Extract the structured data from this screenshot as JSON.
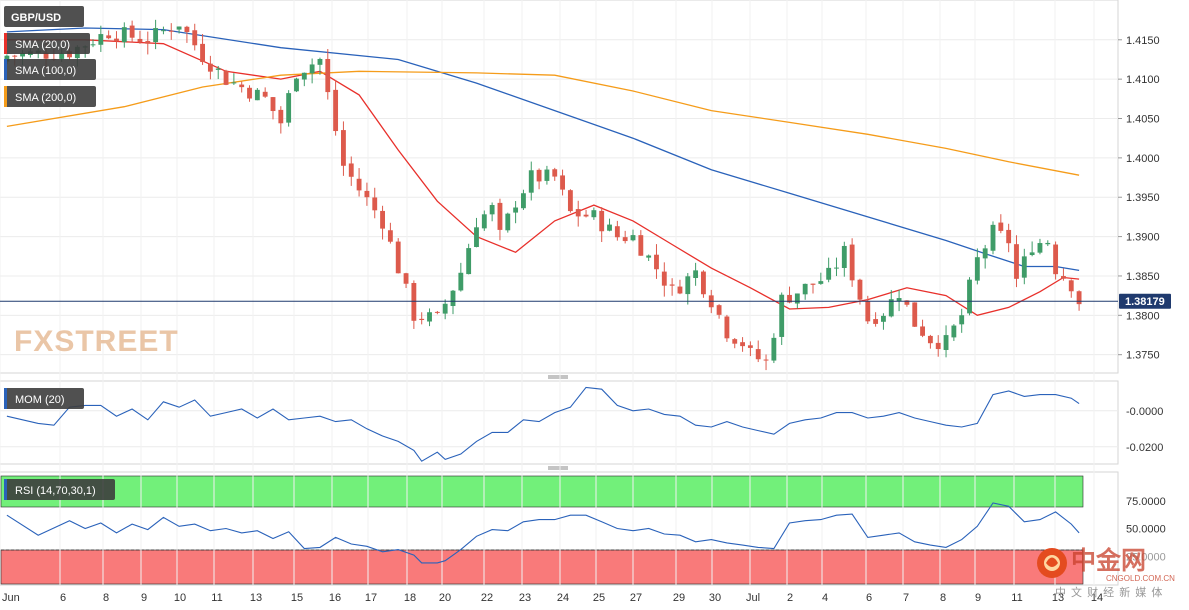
{
  "chart_data": [
    {
      "type": "candlestick",
      "symbol": "GBP/USD",
      "indicator_labels": [
        "SMA (20,0)",
        "SMA (100,0)",
        "SMA (200,0)"
      ],
      "y_ticks": [
        "1.4150",
        "1.4100",
        "1.4050",
        "1.4000",
        "1.3950",
        "1.3900",
        "1.3850",
        "1.3800",
        "1.3750"
      ],
      "ylim": [
        1.3728,
        1.4198
      ],
      "last_price": 1.38179,
      "last_price_label": "1.38179",
      "x_ticks": [
        "Jun",
        "6",
        "8",
        "9",
        "10",
        "11",
        "13",
        "15",
        "16",
        "17",
        "18",
        "20",
        "22",
        "23",
        "24",
        "25",
        "27",
        "29",
        "30",
        "Jul",
        "2",
        "4",
        "6",
        "7",
        "8",
        "9",
        "11",
        "13",
        "14"
      ],
      "close_path": [
        [
          0,
          1.413
        ],
        [
          8,
          1.4135
        ],
        [
          13,
          1.416
        ],
        [
          18,
          1.415
        ],
        [
          22,
          1.4172
        ],
        [
          25,
          1.413
        ],
        [
          28,
          1.41
        ],
        [
          30,
          1.409
        ],
        [
          33,
          1.4075
        ],
        [
          35,
          1.4045
        ],
        [
          37,
          1.411
        ],
        [
          40,
          1.4125
        ],
        [
          43,
          1.399
        ],
        [
          45,
          1.396
        ],
        [
          48,
          1.392
        ],
        [
          50,
          1.386
        ],
        [
          52,
          1.38
        ],
        [
          55,
          1.3795
        ],
        [
          58,
          1.3855
        ],
        [
          60,
          1.392
        ],
        [
          62,
          1.3935
        ],
        [
          63,
          1.39
        ],
        [
          65,
          1.3945
        ],
        [
          67,
          1.3975
        ],
        [
          70,
          1.3975
        ],
        [
          72,
          1.393
        ],
        [
          75,
          1.3925
        ],
        [
          78,
          1.39
        ],
        [
          80,
          1.39
        ],
        [
          83,
          1.386
        ],
        [
          85,
          1.383
        ],
        [
          88,
          1.3855
        ],
        [
          90,
          1.382
        ],
        [
          92,
          1.378
        ],
        [
          94,
          1.3765
        ],
        [
          95,
          1.375
        ],
        [
          97,
          1.374
        ],
        [
          99,
          1.382
        ],
        [
          102,
          1.3835
        ],
        [
          105,
          1.385
        ],
        [
          107,
          1.388
        ],
        [
          110,
          1.3795
        ],
        [
          112,
          1.3805
        ],
        [
          114,
          1.383
        ],
        [
          116,
          1.379
        ],
        [
          118,
          1.377
        ],
        [
          120,
          1.3765
        ],
        [
          122,
          1.38
        ],
        [
          124,
          1.387
        ],
        [
          126,
          1.3905
        ],
        [
          128,
          1.3895
        ],
        [
          129,
          1.3845
        ],
        [
          131,
          1.389
        ],
        [
          133,
          1.3895
        ],
        [
          134,
          1.386
        ],
        [
          136,
          1.384
        ],
        [
          137,
          1.3818
        ]
      ],
      "series": [
        {
          "name": "SMA (20,0)",
          "color": "#e8302b",
          "points": [
            [
              0,
              1.415
            ],
            [
              10,
              1.415
            ],
            [
              20,
              1.4145
            ],
            [
              28,
              1.411
            ],
            [
              35,
              1.41
            ],
            [
              40,
              1.411
            ],
            [
              45,
              1.408
            ],
            [
              50,
              1.401
            ],
            [
              55,
              1.3945
            ],
            [
              60,
              1.39
            ],
            [
              65,
              1.388
            ],
            [
              70,
              1.392
            ],
            [
              75,
              1.394
            ],
            [
              80,
              1.392
            ],
            [
              85,
              1.389
            ],
            [
              90,
              1.386
            ],
            [
              95,
              1.3835
            ],
            [
              100,
              1.3808
            ],
            [
              105,
              1.381
            ],
            [
              110,
              1.382
            ],
            [
              115,
              1.3835
            ],
            [
              120,
              1.3825
            ],
            [
              124,
              1.38
            ],
            [
              128,
              1.381
            ],
            [
              132,
              1.383
            ],
            [
              135,
              1.3848
            ],
            [
              137,
              1.3846
            ]
          ]
        },
        {
          "name": "SMA (100,0)",
          "color": "#2a62ba",
          "points": [
            [
              0,
              1.416
            ],
            [
              10,
              1.4165
            ],
            [
              20,
              1.4163
            ],
            [
              35,
              1.414
            ],
            [
              50,
              1.4125
            ],
            [
              60,
              1.4095
            ],
            [
              70,
              1.406
            ],
            [
              80,
              1.4025
            ],
            [
              90,
              1.3985
            ],
            [
              100,
              1.3955
            ],
            [
              110,
              1.3925
            ],
            [
              120,
              1.3895
            ],
            [
              126,
              1.3875
            ],
            [
              130,
              1.3862
            ],
            [
              134,
              1.3862
            ],
            [
              137,
              1.3857
            ]
          ]
        },
        {
          "name": "SMA (200,0)",
          "color": "#f59c1a",
          "points": [
            [
              0,
              1.404
            ],
            [
              15,
              1.4065
            ],
            [
              25,
              1.409
            ],
            [
              35,
              1.4105
            ],
            [
              45,
              1.411
            ],
            [
              60,
              1.4108
            ],
            [
              70,
              1.4105
            ],
            [
              80,
              1.4085
            ],
            [
              90,
              1.406
            ],
            [
              100,
              1.4045
            ],
            [
              110,
              1.403
            ],
            [
              120,
              1.4012
            ],
            [
              128,
              1.3995
            ],
            [
              137,
              1.3978
            ]
          ]
        }
      ]
    },
    {
      "type": "line",
      "label": "MOM (20)",
      "y_ticks": [
        "-0.0000",
        "-0.0200"
      ],
      "ylim": [
        -0.029,
        0.016
      ],
      "series": [
        {
          "name": "MOM (20)",
          "color": "#2a62ba",
          "points": [
            [
              0,
              -0.003
            ],
            [
              4,
              -0.007
            ],
            [
              6,
              -0.008
            ],
            [
              8,
              0.002
            ],
            [
              10,
              0.003
            ],
            [
              12,
              0.003
            ],
            [
              14,
              -0.003
            ],
            [
              16,
              0.001
            ],
            [
              18,
              -0.005
            ],
            [
              20,
              0.005
            ],
            [
              22,
              0.002
            ],
            [
              24,
              0.006
            ],
            [
              26,
              -0.003
            ],
            [
              28,
              -0.001
            ],
            [
              30,
              0.001
            ],
            [
              32,
              -0.004
            ],
            [
              34,
              0.001
            ],
            [
              36,
              -0.005
            ],
            [
              38,
              -0.004
            ],
            [
              40,
              -0.003
            ],
            [
              42,
              -0.006
            ],
            [
              44,
              -0.005
            ],
            [
              46,
              -0.01
            ],
            [
              48,
              -0.014
            ],
            [
              50,
              -0.017
            ],
            [
              52,
              -0.022
            ],
            [
              53,
              -0.028
            ],
            [
              55,
              -0.023
            ],
            [
              56,
              -0.027
            ],
            [
              58,
              -0.024
            ],
            [
              60,
              -0.017
            ],
            [
              62,
              -0.012
            ],
            [
              64,
              -0.012
            ],
            [
              66,
              -0.005
            ],
            [
              68,
              -0.006
            ],
            [
              70,
              -0.001
            ],
            [
              72,
              0.002
            ],
            [
              74,
              0.013
            ],
            [
              76,
              0.012
            ],
            [
              78,
              0.003
            ],
            [
              80,
              0.0
            ],
            [
              82,
              0.001
            ],
            [
              84,
              -0.002
            ],
            [
              86,
              -0.003
            ],
            [
              88,
              -0.008
            ],
            [
              90,
              -0.009
            ],
            [
              92,
              -0.006
            ],
            [
              94,
              -0.009
            ],
            [
              96,
              -0.011
            ],
            [
              98,
              -0.013
            ],
            [
              100,
              -0.007
            ],
            [
              102,
              -0.005
            ],
            [
              104,
              -0.004
            ],
            [
              106,
              -0.001
            ],
            [
              108,
              -0.001
            ],
            [
              110,
              -0.004
            ],
            [
              112,
              -0.003
            ],
            [
              114,
              -0.001
            ],
            [
              116,
              -0.004
            ],
            [
              118,
              -0.006
            ],
            [
              120,
              -0.008
            ],
            [
              122,
              -0.009
            ],
            [
              124,
              -0.007
            ],
            [
              126,
              0.009
            ],
            [
              128,
              0.011
            ],
            [
              130,
              0.008
            ],
            [
              132,
              0.009
            ],
            [
              134,
              0.009
            ],
            [
              136,
              0.007
            ],
            [
              137,
              0.004
            ]
          ]
        }
      ]
    },
    {
      "type": "line",
      "label": "RSI (14,70,30,1)",
      "y_ticks": [
        "75.0000",
        "50.0000"
      ],
      "ylim": [
        0,
        100
      ],
      "overbought": 70,
      "oversold": 30,
      "series": [
        {
          "name": "RSI (14,70,30,1)",
          "color": "#2a62ba",
          "points": [
            [
              0,
              62
            ],
            [
              4,
              44
            ],
            [
              8,
              57
            ],
            [
              10,
              50
            ],
            [
              12,
              55
            ],
            [
              14,
              46
            ],
            [
              16,
              54
            ],
            [
              18,
              49
            ],
            [
              20,
              60
            ],
            [
              22,
              52
            ],
            [
              24,
              54
            ],
            [
              26,
              48
            ],
            [
              28,
              50
            ],
            [
              30,
              46
            ],
            [
              32,
              48
            ],
            [
              34,
              41
            ],
            [
              36,
              47
            ],
            [
              38,
              32
            ],
            [
              40,
              33
            ],
            [
              42,
              42
            ],
            [
              44,
              36
            ],
            [
              46,
              34
            ],
            [
              48,
              29
            ],
            [
              50,
              31
            ],
            [
              52,
              26
            ],
            [
              53,
              19
            ],
            [
              55,
              19
            ],
            [
              56,
              21
            ],
            [
              58,
              31
            ],
            [
              60,
              43
            ],
            [
              62,
              49
            ],
            [
              64,
              48
            ],
            [
              66,
              56
            ],
            [
              68,
              58
            ],
            [
              70,
              58
            ],
            [
              72,
              62
            ],
            [
              74,
              62
            ],
            [
              76,
              56
            ],
            [
              78,
              50
            ],
            [
              80,
              48
            ],
            [
              82,
              50
            ],
            [
              84,
              45
            ],
            [
              86,
              44
            ],
            [
              88,
              38
            ],
            [
              90,
              40
            ],
            [
              92,
              37
            ],
            [
              94,
              35
            ],
            [
              96,
              33
            ],
            [
              98,
              32
            ],
            [
              100,
              55
            ],
            [
              102,
              57
            ],
            [
              104,
              58
            ],
            [
              106,
              62
            ],
            [
              108,
              63
            ],
            [
              110,
              42
            ],
            [
              112,
              44
            ],
            [
              114,
              46
            ],
            [
              116,
              38
            ],
            [
              118,
              35
            ],
            [
              120,
              33
            ],
            [
              122,
              40
            ],
            [
              124,
              52
            ],
            [
              126,
              73
            ],
            [
              128,
              70
            ],
            [
              130,
              56
            ],
            [
              132,
              58
            ],
            [
              134,
              65
            ],
            [
              136,
              54
            ],
            [
              137,
              46
            ]
          ]
        }
      ]
    }
  ],
  "watermark": "FXSTREET",
  "logo": {
    "cn_text": "中金网",
    "cn_sub": "中 文 财 经 新 媒 体",
    "en_sub": "CNGOLD.COM.CN"
  }
}
